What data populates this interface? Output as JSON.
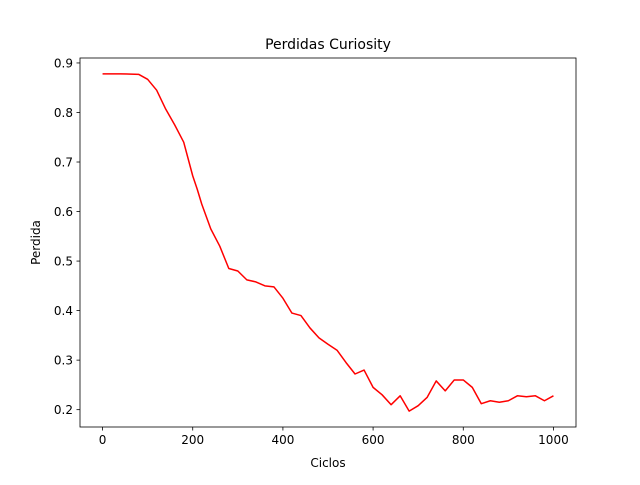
{
  "chart_data": {
    "type": "line",
    "title": "Perdidas Curiosity",
    "xlabel": "Ciclos",
    "ylabel": "Perdida",
    "xlim": [
      -50,
      1050
    ],
    "ylim": [
      0.165,
      0.91
    ],
    "xticks": [
      0,
      200,
      400,
      600,
      800,
      1000
    ],
    "yticks": [
      0.2,
      0.3,
      0.4,
      0.5,
      0.6,
      0.7,
      0.8,
      0.9
    ],
    "xtick_labels": [
      "0",
      "200",
      "400",
      "600",
      "800",
      "1000"
    ],
    "ytick_labels": [
      "0.2",
      "0.3",
      "0.4",
      "0.5",
      "0.6",
      "0.7",
      "0.8",
      "0.9"
    ],
    "grid": false,
    "series": [
      {
        "color": "#ff0000",
        "x": [
          0,
          40,
          80,
          100,
          120,
          140,
          160,
          180,
          200,
          210,
          220,
          240,
          260,
          280,
          300,
          320,
          340,
          360,
          380,
          400,
          420,
          440,
          460,
          480,
          500,
          520,
          540,
          560,
          580,
          600,
          620,
          640,
          660,
          680,
          700,
          720,
          740,
          760,
          780,
          800,
          820,
          840,
          860,
          880,
          900,
          920,
          940,
          960,
          980,
          1000
        ],
        "y": [
          0.878,
          0.878,
          0.877,
          0.867,
          0.845,
          0.807,
          0.775,
          0.74,
          0.672,
          0.645,
          0.615,
          0.565,
          0.53,
          0.485,
          0.48,
          0.462,
          0.458,
          0.45,
          0.448,
          0.425,
          0.395,
          0.39,
          0.365,
          0.345,
          0.332,
          0.32,
          0.295,
          0.272,
          0.28,
          0.245,
          0.23,
          0.21,
          0.228,
          0.197,
          0.208,
          0.225,
          0.258,
          0.238,
          0.26,
          0.26,
          0.245,
          0.212,
          0.218,
          0.215,
          0.218,
          0.228,
          0.226,
          0.228,
          0.218,
          0.228
        ]
      }
    ]
  }
}
